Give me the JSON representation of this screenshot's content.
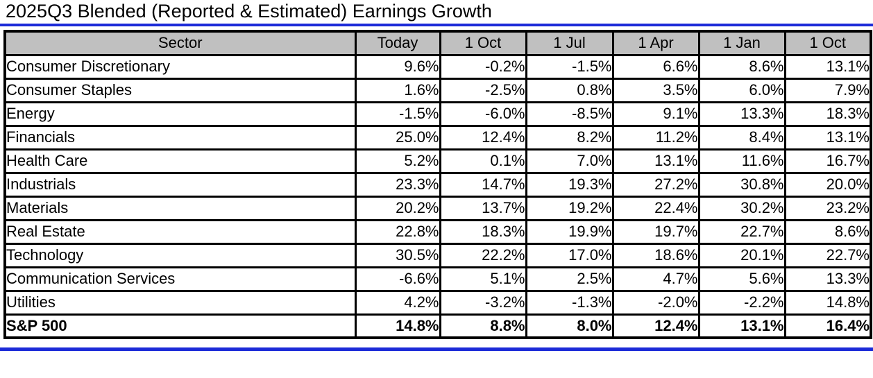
{
  "title": "2025Q3 Blended (Reported & Estimated) Earnings Growth",
  "colors": {
    "accent_blue": "#1C2BD8",
    "header_bg": "#C0C0C0",
    "border": "#000000"
  },
  "table": {
    "columns": [
      "Sector",
      "Today",
      "1 Oct",
      "1 Jul",
      "1 Apr",
      "1 Jan",
      "1 Oct"
    ],
    "rows": [
      {
        "sector": "Consumer Discretionary",
        "values": [
          "9.6%",
          "-0.2%",
          "-1.5%",
          "6.6%",
          "8.6%",
          "13.1%"
        ],
        "bold": false
      },
      {
        "sector": "Consumer Staples",
        "values": [
          "1.6%",
          "-2.5%",
          "0.8%",
          "3.5%",
          "6.0%",
          "7.9%"
        ],
        "bold": false
      },
      {
        "sector": "Energy",
        "values": [
          "-1.5%",
          "-6.0%",
          "-8.5%",
          "9.1%",
          "13.3%",
          "18.3%"
        ],
        "bold": false
      },
      {
        "sector": "Financials",
        "values": [
          "25.0%",
          "12.4%",
          "8.2%",
          "11.2%",
          "8.4%",
          "13.1%"
        ],
        "bold": false
      },
      {
        "sector": "Health Care",
        "values": [
          "5.2%",
          "0.1%",
          "7.0%",
          "13.1%",
          "11.6%",
          "16.7%"
        ],
        "bold": false
      },
      {
        "sector": "Industrials",
        "values": [
          "23.3%",
          "14.7%",
          "19.3%",
          "27.2%",
          "30.8%",
          "20.0%"
        ],
        "bold": false
      },
      {
        "sector": "Materials",
        "values": [
          "20.2%",
          "13.7%",
          "19.2%",
          "22.4%",
          "30.2%",
          "23.2%"
        ],
        "bold": false
      },
      {
        "sector": "Real Estate",
        "values": [
          "22.8%",
          "18.3%",
          "19.9%",
          "19.7%",
          "22.7%",
          "8.6%"
        ],
        "bold": false
      },
      {
        "sector": "Technology",
        "values": [
          "30.5%",
          "22.2%",
          "17.0%",
          "18.6%",
          "20.1%",
          "22.7%"
        ],
        "bold": false
      },
      {
        "sector": "Communication Services",
        "values": [
          "-6.6%",
          "5.1%",
          "2.5%",
          "4.7%",
          "5.6%",
          "13.3%"
        ],
        "bold": false
      },
      {
        "sector": "Utilities",
        "values": [
          "4.2%",
          "-3.2%",
          "-1.3%",
          "-2.0%",
          "-2.2%",
          "14.8%"
        ],
        "bold": false
      },
      {
        "sector": "S&P 500",
        "values": [
          "14.8%",
          "8.8%",
          "8.0%",
          "12.4%",
          "13.1%",
          "16.4%"
        ],
        "bold": true
      }
    ]
  },
  "chart_data": {
    "type": "table",
    "title": "2025Q3 Blended (Reported & Estimated) Earnings Growth",
    "categories": [
      "Today",
      "1 Oct",
      "1 Jul",
      "1 Apr",
      "1 Jan",
      "1 Oct"
    ],
    "unit": "percent",
    "series": [
      {
        "name": "Consumer Discretionary",
        "values": [
          9.6,
          -0.2,
          -1.5,
          6.6,
          8.6,
          13.1
        ]
      },
      {
        "name": "Consumer Staples",
        "values": [
          1.6,
          -2.5,
          0.8,
          3.5,
          6.0,
          7.9
        ]
      },
      {
        "name": "Energy",
        "values": [
          -1.5,
          -6.0,
          -8.5,
          9.1,
          13.3,
          18.3
        ]
      },
      {
        "name": "Financials",
        "values": [
          25.0,
          12.4,
          8.2,
          11.2,
          8.4,
          13.1
        ]
      },
      {
        "name": "Health Care",
        "values": [
          5.2,
          0.1,
          7.0,
          13.1,
          11.6,
          16.7
        ]
      },
      {
        "name": "Industrials",
        "values": [
          23.3,
          14.7,
          19.3,
          27.2,
          30.8,
          20.0
        ]
      },
      {
        "name": "Materials",
        "values": [
          20.2,
          13.7,
          19.2,
          22.4,
          30.2,
          23.2
        ]
      },
      {
        "name": "Real Estate",
        "values": [
          22.8,
          18.3,
          19.9,
          19.7,
          22.7,
          8.6
        ]
      },
      {
        "name": "Technology",
        "values": [
          30.5,
          22.2,
          17.0,
          18.6,
          20.1,
          22.7
        ]
      },
      {
        "name": "Communication Services",
        "values": [
          -6.6,
          5.1,
          2.5,
          4.7,
          5.6,
          13.3
        ]
      },
      {
        "name": "Utilities",
        "values": [
          4.2,
          -3.2,
          -1.3,
          -2.0,
          -2.2,
          14.8
        ]
      },
      {
        "name": "S&P 500",
        "values": [
          14.8,
          8.8,
          8.0,
          12.4,
          13.1,
          16.4
        ]
      }
    ]
  }
}
